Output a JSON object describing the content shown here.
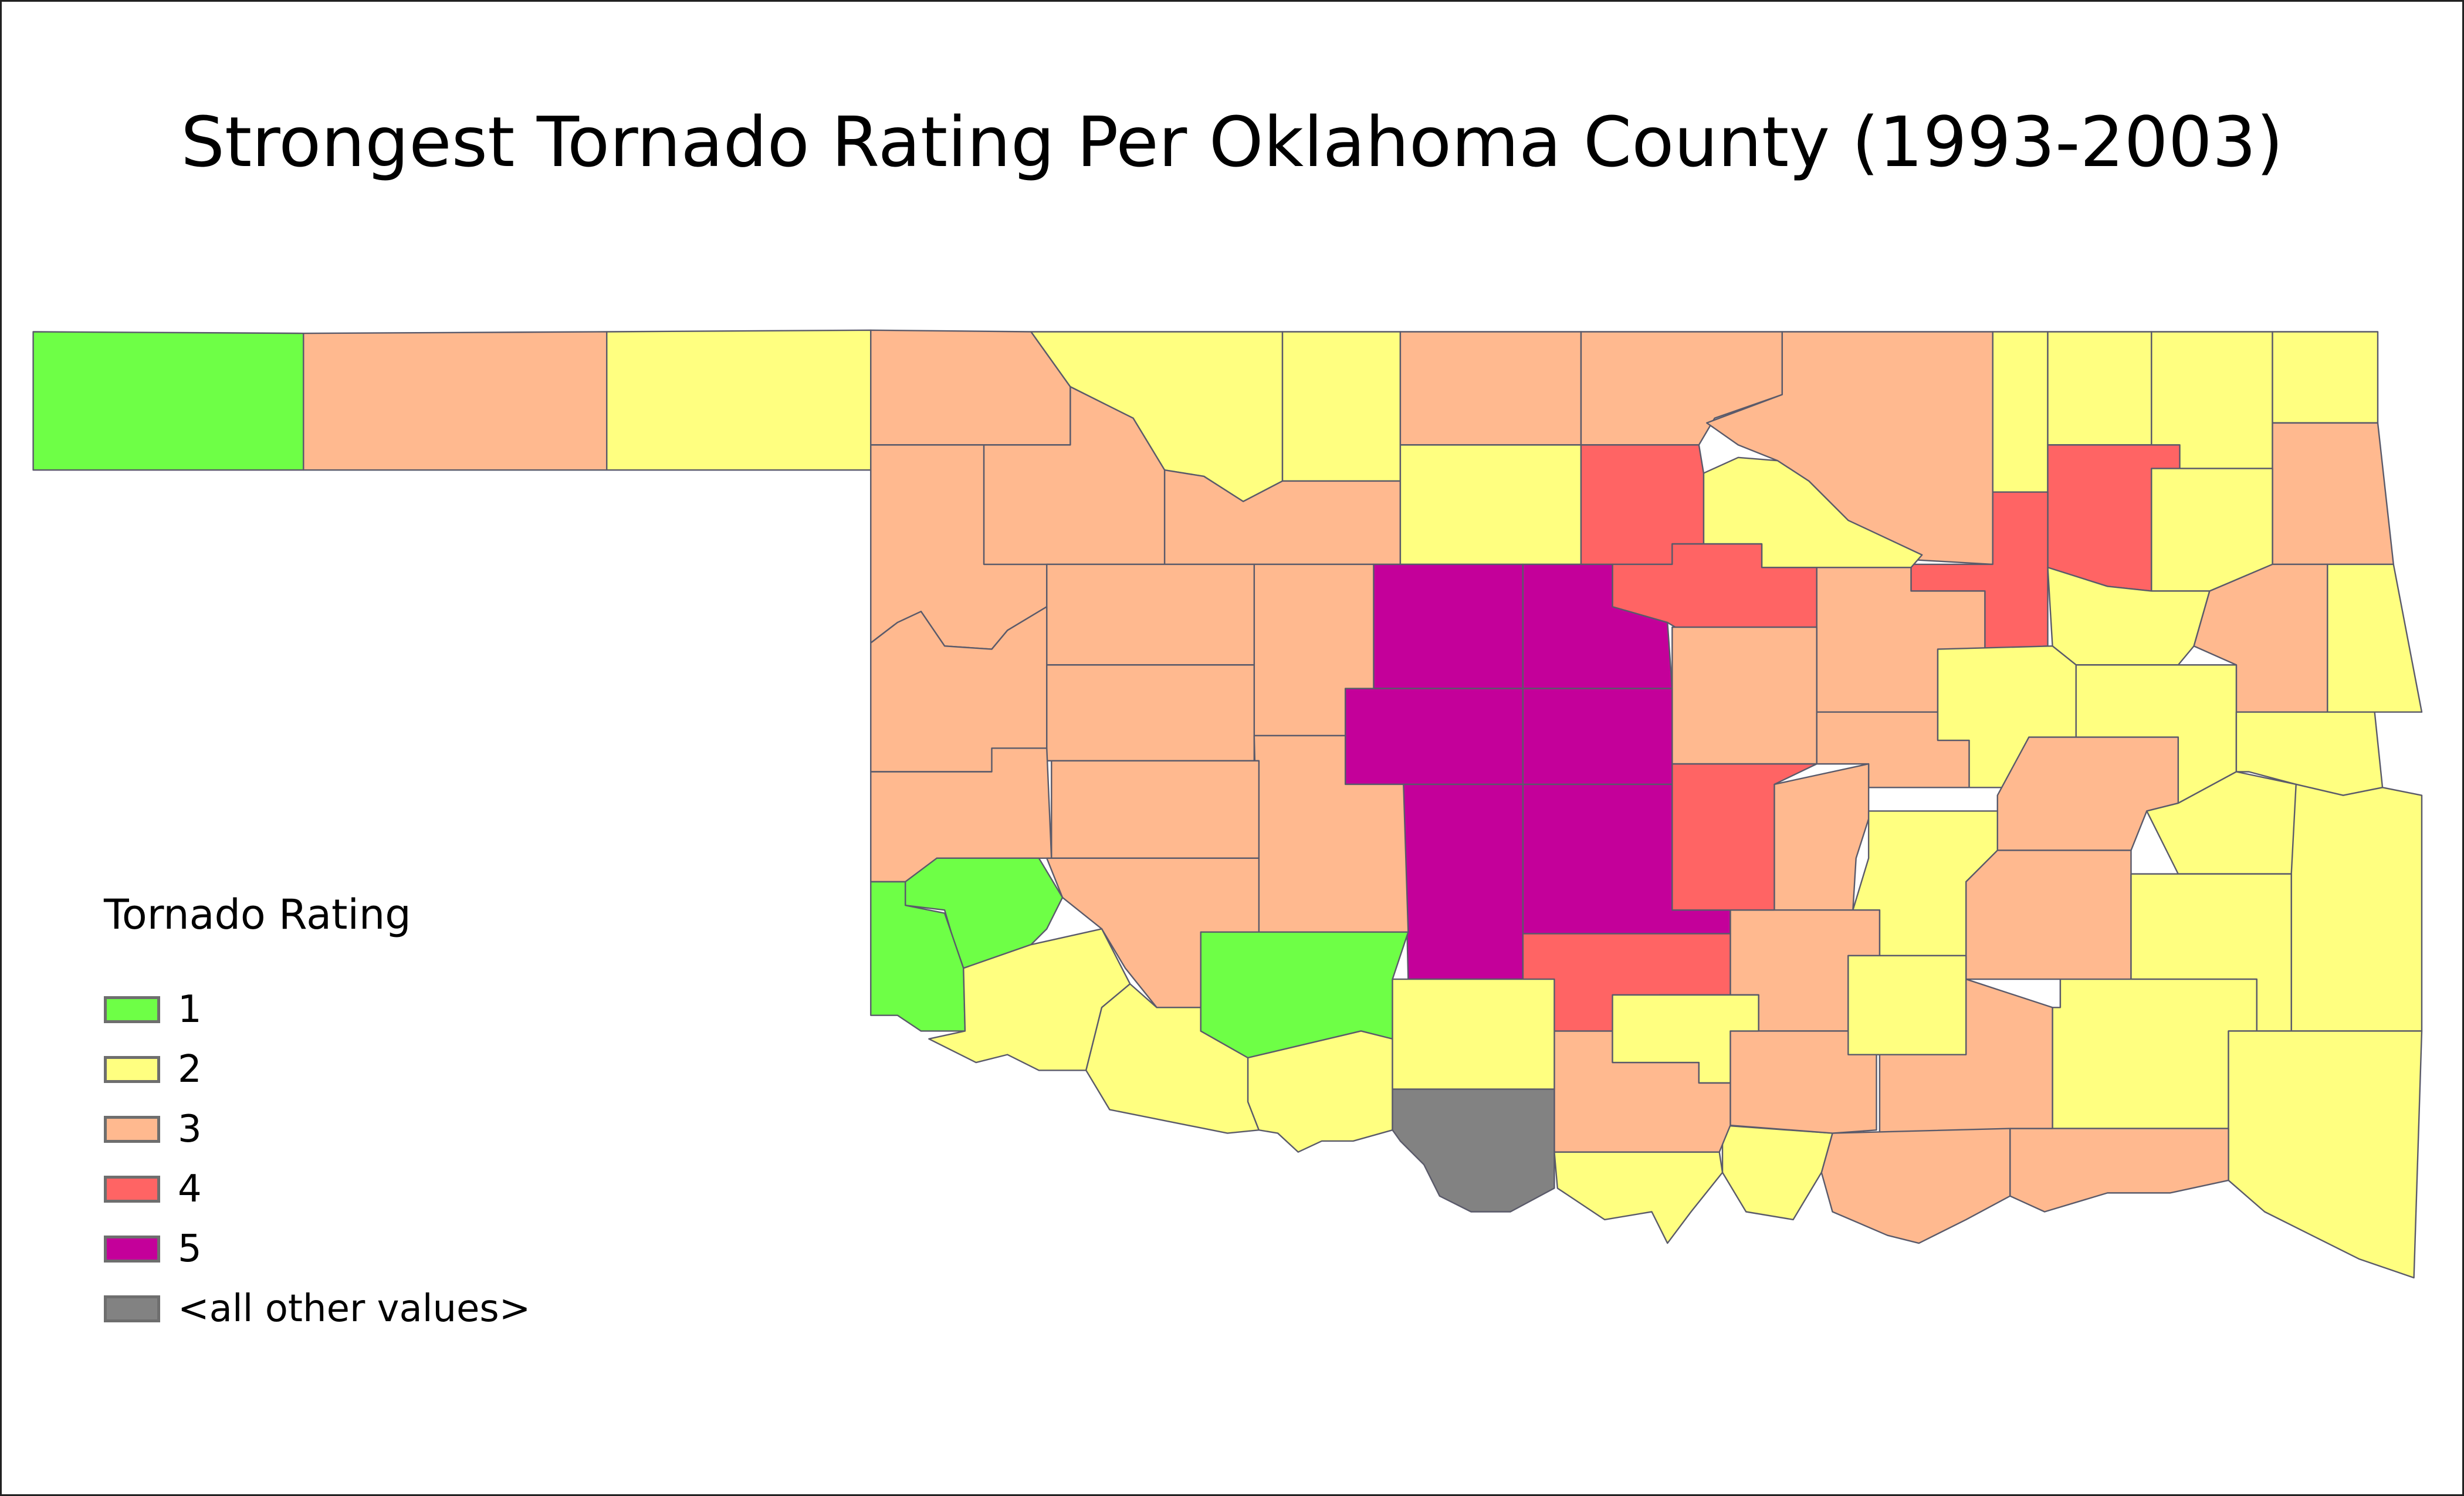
{
  "title": "Strongest Tornado Rating Per Oklahoma County (1993-2003)",
  "legend": {
    "title": "Tornado Rating",
    "items": [
      {
        "label": "1",
        "color": "#6eff46"
      },
      {
        "label": "2",
        "color": "#ffff80"
      },
      {
        "label": "3",
        "color": "#ffb98f"
      },
      {
        "label": "4",
        "color": "#ff6464"
      },
      {
        "label": "5",
        "color": "#c4009a"
      },
      {
        "label": "<all other values>",
        "color": "#828282"
      }
    ]
  },
  "map": {
    "county_ratings": [
      1,
      3,
      2,
      3,
      2,
      2,
      3,
      3,
      3,
      2,
      2,
      2,
      2,
      3,
      4,
      4,
      2,
      3,
      3,
      3,
      2,
      2,
      4,
      4,
      3,
      3,
      2,
      3,
      2,
      3,
      2,
      2,
      3,
      2,
      3,
      2,
      2,
      3,
      2,
      2,
      2,
      2,
      3,
      3,
      3,
      3,
      2,
      2,
      3,
      3,
      2,
      4,
      4,
      5,
      5,
      5,
      5,
      5,
      5,
      3,
      3,
      3,
      3,
      3,
      3,
      3,
      3,
      2,
      1,
      1,
      2,
      2,
      1,
      2,
      2
    ]
  }
}
